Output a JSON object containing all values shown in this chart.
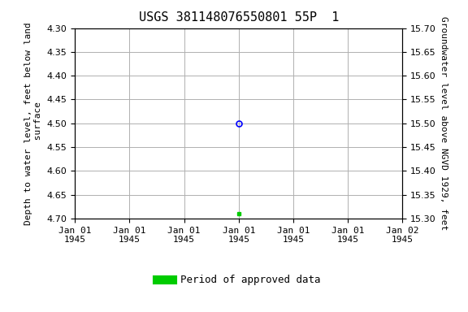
{
  "title": "USGS 381148076550801 55P  1",
  "ylabel_left": "Depth to water level, feet below land\n surface",
  "ylabel_right": "Groundwater level above NGVD 1929, feet",
  "ylim_left": [
    4.7,
    4.3
  ],
  "ylim_right": [
    15.3,
    15.7
  ],
  "yticks_left": [
    4.3,
    4.35,
    4.4,
    4.45,
    4.5,
    4.55,
    4.6,
    4.65,
    4.7
  ],
  "yticks_right": [
    15.7,
    15.65,
    15.6,
    15.55,
    15.5,
    15.45,
    15.4,
    15.35,
    15.3
  ],
  "xlim": [
    0,
    6
  ],
  "xticks": [
    0,
    1,
    2,
    3,
    4,
    5,
    6
  ],
  "xticklabels": [
    "Jan 01\n1945",
    "Jan 01\n1945",
    "Jan 01\n1945",
    "Jan 01\n1945",
    "Jan 01\n1945",
    "Jan 01\n1945",
    "Jan 02\n1945"
  ],
  "blue_point_x": 3,
  "blue_point_y": 4.5,
  "green_point_x": 3,
  "green_point_y": 4.69,
  "background_color": "#ffffff",
  "grid_color": "#b0b0b0",
  "title_fontsize": 11,
  "axis_label_fontsize": 8,
  "tick_fontsize": 8,
  "legend_label": "Period of approved data",
  "legend_color": "#00cc00"
}
